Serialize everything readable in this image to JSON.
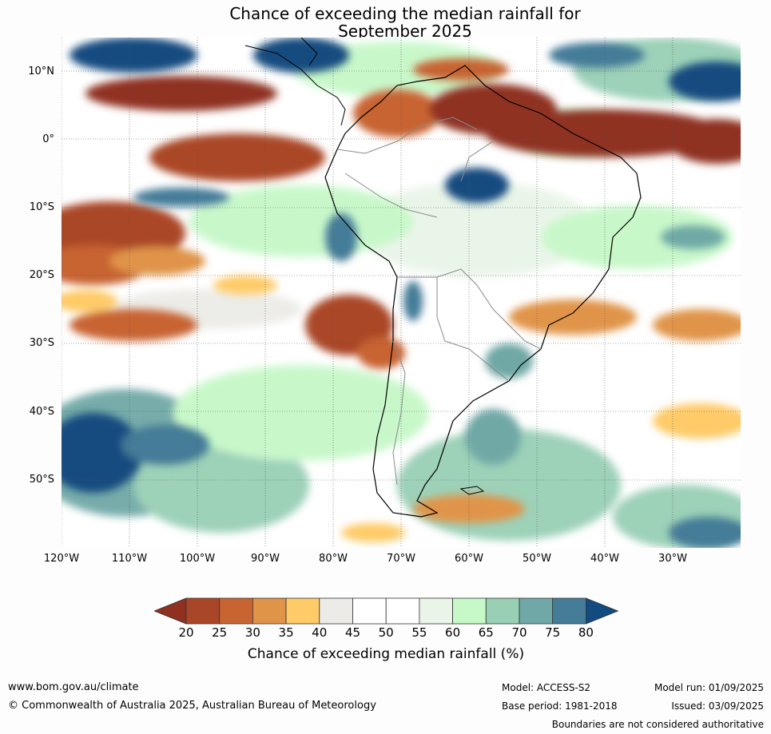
{
  "title_line1": "Chance of exceeding the median rainfall for",
  "title_line2": "September 2025",
  "latitude_labels": [
    "10°N",
    "0°",
    "10°S",
    "20°S",
    "30°S",
    "40°S",
    "50°S"
  ],
  "longitude_labels": [
    "120°W",
    "110°W",
    "100°W",
    "90°W",
    "80°W",
    "70°W",
    "60°W",
    "50°W",
    "40°W",
    "30°W"
  ],
  "colorbar": {
    "ticks": [
      "20",
      "25",
      "30",
      "35",
      "40",
      "45",
      "50",
      "55",
      "60",
      "65",
      "70",
      "75",
      "80"
    ],
    "colors": [
      "#8f3020",
      "#aa4628",
      "#c86432",
      "#e0944a",
      "#fecb68",
      "#ecebe7",
      "#ffffff",
      "#ffffff",
      "#e9f5e8",
      "#c6f8c8",
      "#98cfb5",
      "#6fa8a6",
      "#457c98",
      "#124b80"
    ],
    "label": "Chance of exceeding median rainfall (%)"
  },
  "footer": {
    "website": "www.bom.gov.au/climate",
    "copyright": "© Commonwealth of Australia 2025, Australian Bureau of Meteorology",
    "model": "Model: ACCESS-S2",
    "base_period": "Base period: 1981-2018",
    "model_run": "Model run: 01/09/2025",
    "issued": "Issued: 03/09/2025",
    "disclaimer": "Boundaries are not considered authoritative"
  }
}
